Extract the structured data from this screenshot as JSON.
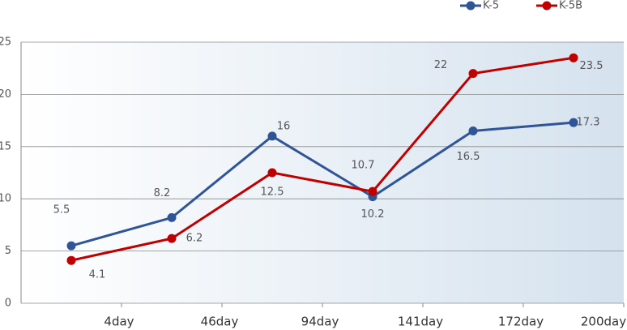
{
  "chart_data": {
    "type": "line",
    "categories": [
      "4day",
      "46day",
      "94day",
      "141day",
      "172day",
      "200day"
    ],
    "series": [
      {
        "name": "K-5",
        "color": "#2f5597",
        "values": [
          5.5,
          8.2,
          16,
          10.2,
          16.5,
          17.3
        ]
      },
      {
        "name": "K-5B",
        "color": "#c00000",
        "values": [
          4.1,
          6.2,
          12.5,
          10.7,
          22,
          23.5
        ]
      }
    ],
    "ylim": [
      0,
      25
    ],
    "yticks": [
      0,
      5,
      10,
      15,
      20,
      25
    ],
    "grid": true,
    "legend": "top-right"
  }
}
